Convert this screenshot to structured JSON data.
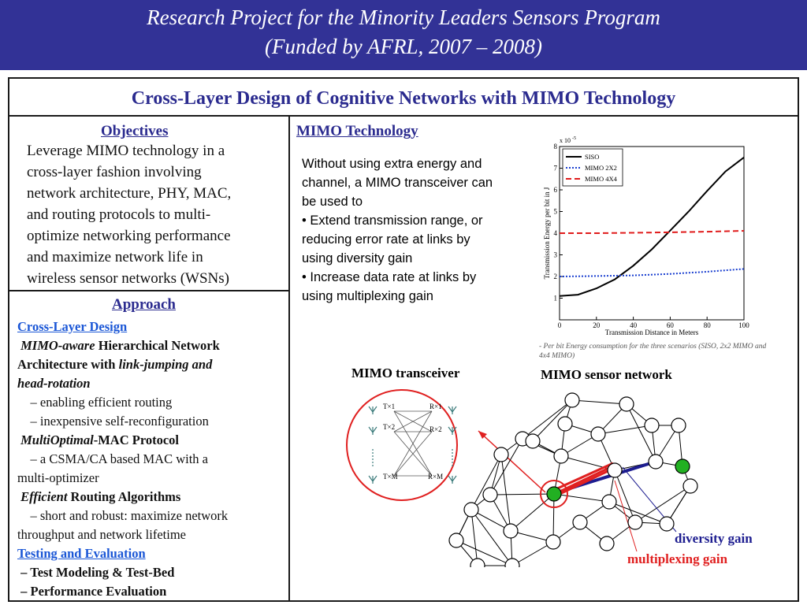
{
  "header": {
    "title_line1": "Research Project for the Minority Leaders Sensors Program",
    "title_line2": "(Funded by AFRL, 2007 – 2008)"
  },
  "main": {
    "title": "Cross-Layer Design of Cognitive Networks with MIMO Technology"
  },
  "objectives": {
    "heading": "Objectives",
    "lines": [
      "Leverage MIMO technology in a",
      "cross-layer fashion involving",
      "network architecture, PHY, MAC,",
      "and routing protocols to multi-",
      "optimize  networking performance",
      "and maximize network life in",
      "wireless sensor networks (WSNs)"
    ]
  },
  "approach": {
    "heading": "Approach",
    "cross_layer_link": "Cross-Layer Design",
    "item1_ital": "MIMO-aware",
    "item1_bold": " Hierarchical Network",
    "item1_line2_bold": "Architecture with ",
    "item1_line2_ital": "link-jumping and",
    "item1_line3_ital": "head-rotation",
    "item1_sub1": "–  enabling efficient routing",
    "item1_sub2": "–  inexpensive self-reconfiguration",
    "item2_ital": "MultiOptimal",
    "item2_bold": "-MAC Protocol",
    "item2_sub1": "– a CSMA/CA based MAC with a",
    "item2_sub2": "multi-optimizer",
    "item3_ital": "Efficient",
    "item3_bold": " Routing Algorithms",
    "item3_sub1": "– short and robust: maximize network",
    "item3_sub2": "throughput and network lifetime",
    "testing_link": "Testing and Evaluation",
    "test1": "– Test Modeling & Test-Bed",
    "test2": "– Performance Evaluation"
  },
  "mimo": {
    "heading": "MIMO Technology",
    "lines": [
      "Without using extra energy and",
      "channel, a MIMO transceiver can",
      "be used to",
      "• Extend transmission range, or",
      "reducing error rate at links by",
      "using diversity gain",
      "• Increase data rate at links by",
      "using multiplexing gain"
    ]
  },
  "chart_data": {
    "type": "line",
    "xlabel": "Transmission Distance in Meters",
    "ylabel": "Transmission Energy  per  bit in J",
    "y_exponent_label": "x 10",
    "y_exponent_power": "-5",
    "xlim": [
      0,
      100
    ],
    "ylim": [
      0,
      8
    ],
    "xticks": [
      0,
      20,
      40,
      60,
      80,
      100
    ],
    "yticks": [
      1,
      2,
      3,
      4,
      5,
      6,
      7,
      8
    ],
    "grid": false,
    "legend_position": "top-left",
    "series": [
      {
        "name": "SISO",
        "color": "#000000",
        "style": "solid",
        "x": [
          0,
          10,
          20,
          30,
          40,
          50,
          60,
          70,
          80,
          90,
          100
        ],
        "y": [
          1.1,
          1.16,
          1.45,
          1.87,
          2.5,
          3.25,
          4.12,
          5.0,
          5.95,
          6.85,
          7.5
        ]
      },
      {
        "name": "MIMO 2X2",
        "color": "#1a3fd0",
        "style": "dotted",
        "x": [
          0,
          20,
          40,
          60,
          80,
          100
        ],
        "y": [
          2.0,
          2.02,
          2.05,
          2.12,
          2.22,
          2.35
        ]
      },
      {
        "name": "MIMO 4X4",
        "color": "#e01b1b",
        "style": "dashed",
        "x": [
          0,
          20,
          40,
          60,
          80,
          100
        ],
        "y": [
          4.0,
          4.0,
          4.02,
          4.04,
          4.07,
          4.11
        ]
      }
    ],
    "caption": "- Per bit Energy consumption for the three scenarios (SISO, 2x2 MIMO and 4x4 MIMO)"
  },
  "diagram": {
    "transceiver_label": "MIMO transceiver",
    "network_label": "MIMO sensor network",
    "diversity_label": "diversity gain",
    "multiplexing_label": "multiplexing gain",
    "tx_labels": [
      "T×1",
      "T×2",
      "T×M"
    ],
    "rx_labels": [
      "R×1",
      "R×2",
      "R×M"
    ],
    "colors": {
      "diversity": "#1d1d90",
      "multiplexing": "#e02020",
      "node_active": "#22b022"
    }
  }
}
